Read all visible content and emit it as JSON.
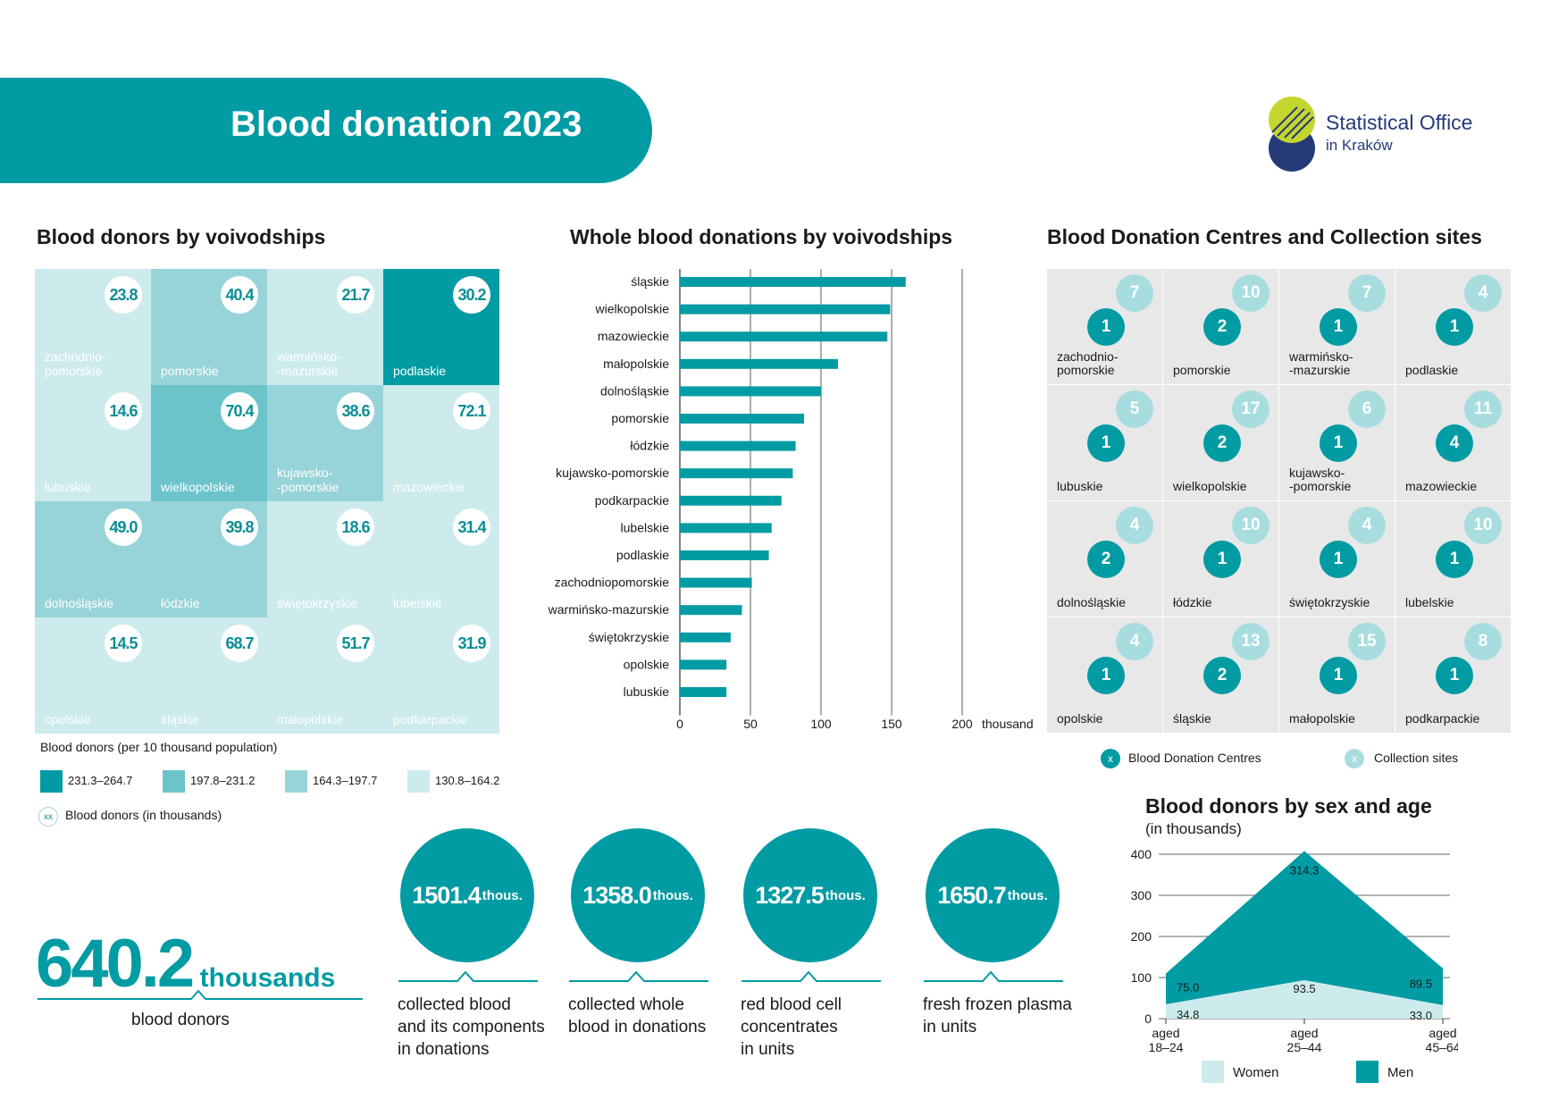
{
  "header": {
    "title": "Blood donation 2023",
    "logo_line1": "Statistical Office",
    "logo_line2": "in Kraków"
  },
  "colors": {
    "teal_dark": "#009ba3",
    "teal_mid": "#6cc4ca",
    "teal_light": "#97d4d9",
    "teal_pale": "#cdebed",
    "collection_site": "#a8dde0",
    "logo_green": "#c4d62e",
    "logo_navy": "#263a7a"
  },
  "donors_map": {
    "title": "Blood donors by voivodships",
    "tiles": [
      {
        "name": "zachodnio-\npomorskie",
        "value": "23.8",
        "class": 4
      },
      {
        "name": "pomorskie",
        "value": "40.4",
        "class": 3
      },
      {
        "name": "warmińsko-\n-mazurskie",
        "value": "21.7",
        "class": 4
      },
      {
        "name": "podlaskie",
        "value": "30.2",
        "class": 1
      },
      {
        "name": "lubuskie",
        "value": "14.6",
        "class": 4
      },
      {
        "name": "wielkopolskie",
        "value": "70.4",
        "class": 2
      },
      {
        "name": "kujawsko-\n-pomorskie",
        "value": "38.6",
        "class": 3
      },
      {
        "name": "mazowieckie",
        "value": "72.1",
        "class": 4
      },
      {
        "name": "dolnośląskie",
        "value": "49.0",
        "class": 3
      },
      {
        "name": "łódzkie",
        "value": "39.8",
        "class": 3
      },
      {
        "name": "świętokrzyskie",
        "value": "18.6",
        "class": 4
      },
      {
        "name": "lubelskie",
        "value": "31.4",
        "class": 4
      },
      {
        "name": "opolskie",
        "value": "14.5",
        "class": 4
      },
      {
        "name": "śląskie",
        "value": "68.7",
        "class": 4
      },
      {
        "name": "małopolskie",
        "value": "51.7",
        "class": 4
      },
      {
        "name": "podkarpackie",
        "value": "31.9",
        "class": 4
      }
    ],
    "legend_title": "Blood donors (per 10 thousand population)",
    "legend": [
      {
        "label": "231.3–264.7",
        "color": "#009ba3"
      },
      {
        "label": "197.8–231.2",
        "color": "#6cc4ca"
      },
      {
        "label": "164.3–197.7",
        "color": "#97d4d9"
      },
      {
        "label": "130.8–164.2",
        "color": "#cdebed"
      }
    ],
    "legend_circle_symbol": "xx",
    "legend_circle_label": "Blood donors (in thousands)"
  },
  "donations_chart": {
    "title": "Whole blood donations by voivodships",
    "unit_label": "thousand"
  },
  "centres": {
    "title": "Blood Donation Centres and Collection sites",
    "tiles": [
      {
        "name": "zachodnio-\npomorskie",
        "centres": "1",
        "sites": "7"
      },
      {
        "name": "pomorskie",
        "centres": "2",
        "sites": "10"
      },
      {
        "name": "warmińsko-\n-mazurskie",
        "centres": "1",
        "sites": "7"
      },
      {
        "name": "podlaskie",
        "centres": "1",
        "sites": "4"
      },
      {
        "name": "lubuskie",
        "centres": "1",
        "sites": "5"
      },
      {
        "name": "wielkopolskie",
        "centres": "2",
        "sites": "17"
      },
      {
        "name": "kujawsko-\n-pomorskie",
        "centres": "1",
        "sites": "6"
      },
      {
        "name": "mazowieckie",
        "centres": "4",
        "sites": "11"
      },
      {
        "name": "dolnośląskie",
        "centres": "2",
        "sites": "4"
      },
      {
        "name": "łódzkie",
        "centres": "1",
        "sites": "10"
      },
      {
        "name": "świętokrzyskie",
        "centres": "1",
        "sites": "4"
      },
      {
        "name": "lubelskie",
        "centres": "1",
        "sites": "10"
      },
      {
        "name": "opolskie",
        "centres": "1",
        "sites": "4"
      },
      {
        "name": "śląskie",
        "centres": "2",
        "sites": "13"
      },
      {
        "name": "małopolskie",
        "centres": "1",
        "sites": "15"
      },
      {
        "name": "podkarpackie",
        "centres": "1",
        "sites": "8"
      }
    ],
    "legend_symbol": "x",
    "legend_centres": "Blood Donation Centres",
    "legend_sites": "Collection sites"
  },
  "headline": {
    "value": "640.2",
    "unit": "thousands",
    "caption": "blood donors"
  },
  "stats": [
    {
      "value": "1501.4",
      "unit": "thous.",
      "caption": [
        "collected blood",
        "and its components",
        "in donations"
      ]
    },
    {
      "value": "1358.0",
      "unit": "thous.",
      "caption": [
        "collected whole",
        "blood in donations"
      ]
    },
    {
      "value": "1327.5",
      "unit": "thous.",
      "caption": [
        "red blood cell",
        "concentrates",
        "in units"
      ]
    },
    {
      "value": "1650.7",
      "unit": "thous.",
      "caption": [
        "fresh frozen plasma",
        "in units"
      ]
    }
  ],
  "sex_age_chart": {
    "title": "Blood donors by sex and age",
    "subtitle": "(in thousands)",
    "legend_women": "Women",
    "legend_men": "Men"
  },
  "chart_data": [
    {
      "type": "bar",
      "orientation": "horizontal",
      "title": "Whole blood donations by voivodships",
      "categories": [
        "śląskie",
        "wielkopolskie",
        "mazowieckie",
        "małopolskie",
        "dolnośląskie",
        "pomorskie",
        "łódzkie",
        "kujawsko-pomorskie",
        "podkarpackie",
        "lubelskie",
        "podlaskie",
        "zachodniopomorskie",
        "warmińsko-mazurskie",
        "świętokrzyskie",
        "opolskie",
        "lubuskie"
      ],
      "values": [
        160,
        149,
        147,
        112,
        100,
        88,
        82,
        80,
        72,
        65,
        63,
        51,
        44,
        36,
        33,
        33
      ],
      "xlim": [
        0,
        200
      ],
      "xticks": [
        0,
        50,
        100,
        150,
        200
      ],
      "xlabel": "thousand",
      "grid": true
    },
    {
      "type": "area",
      "stacked": true,
      "title": "Blood donors by sex and age",
      "subtitle": "(in thousands)",
      "categories": [
        "aged\n18–24",
        "aged\n25–44",
        "aged\n45–64"
      ],
      "series": [
        {
          "name": "Women",
          "values": [
            34.8,
            93.5,
            33.0
          ],
          "color": "#cdebed"
        },
        {
          "name": "Men",
          "values": [
            75.0,
            314.3,
            89.5
          ],
          "color": "#009ba3"
        }
      ],
      "labels": [
        [
          "34.8",
          "93.5",
          "33.0"
        ],
        [
          "75.0",
          "314.3",
          "89.5"
        ]
      ],
      "ylim": [
        0,
        400
      ],
      "yticks": [
        0,
        100,
        200,
        300,
        400
      ],
      "grid": true,
      "legend": "bottom"
    }
  ]
}
